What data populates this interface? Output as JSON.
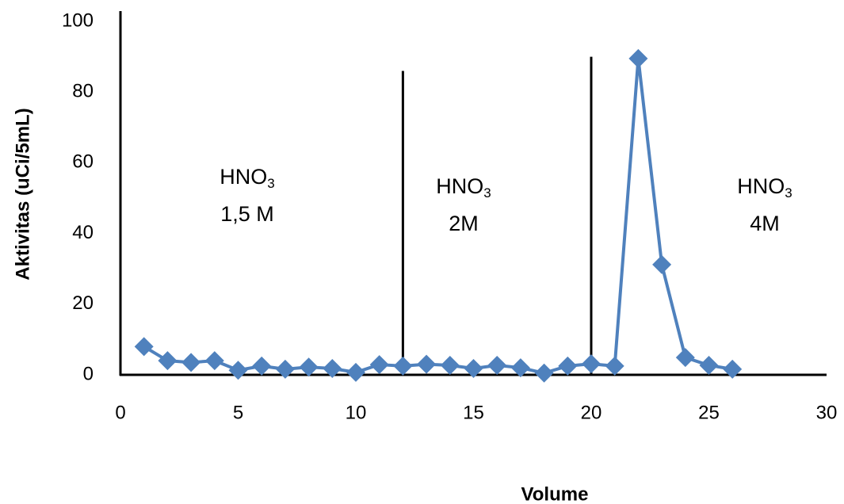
{
  "chart_data": {
    "type": "line",
    "x_label": "Volume",
    "y_label": "Aktivitas (uCi/5mL)",
    "x": [
      1,
      2,
      3,
      4,
      5,
      6,
      7,
      8,
      9,
      10,
      11,
      12,
      13,
      14,
      15,
      16,
      17,
      18,
      19,
      20,
      21,
      22,
      23,
      24,
      25,
      26
    ],
    "series": [
      {
        "color": "#4f81bd",
        "values": [
          8,
          4,
          3.5,
          4,
          1.3,
          2.5,
          1.6,
          2.2,
          1.8,
          0.7,
          2.9,
          2.5,
          3,
          2.7,
          1.8,
          2.7,
          2,
          0.5,
          2.5,
          3.1,
          2.5,
          89.5,
          31.2,
          4.9,
          2.7,
          1.6
        ]
      }
    ],
    "xlim": [
      0,
      30
    ],
    "xticks": [
      0,
      5,
      10,
      15,
      20,
      25,
      30
    ],
    "ylim": [
      0,
      100
    ],
    "yticks": [
      0,
      20,
      40,
      60,
      80,
      100
    ],
    "dividers": [
      {
        "x": 12,
        "top": 86
      },
      {
        "x": 20,
        "top": 90
      }
    ],
    "annotations": [
      {
        "label": "HNO",
        "subscript": "3",
        "concentration": "1,5 M"
      },
      {
        "label": "HNO",
        "subscript": "3",
        "concentration": "2M"
      },
      {
        "label": "HNO",
        "subscript": "3",
        "concentration": "4M"
      }
    ]
  }
}
